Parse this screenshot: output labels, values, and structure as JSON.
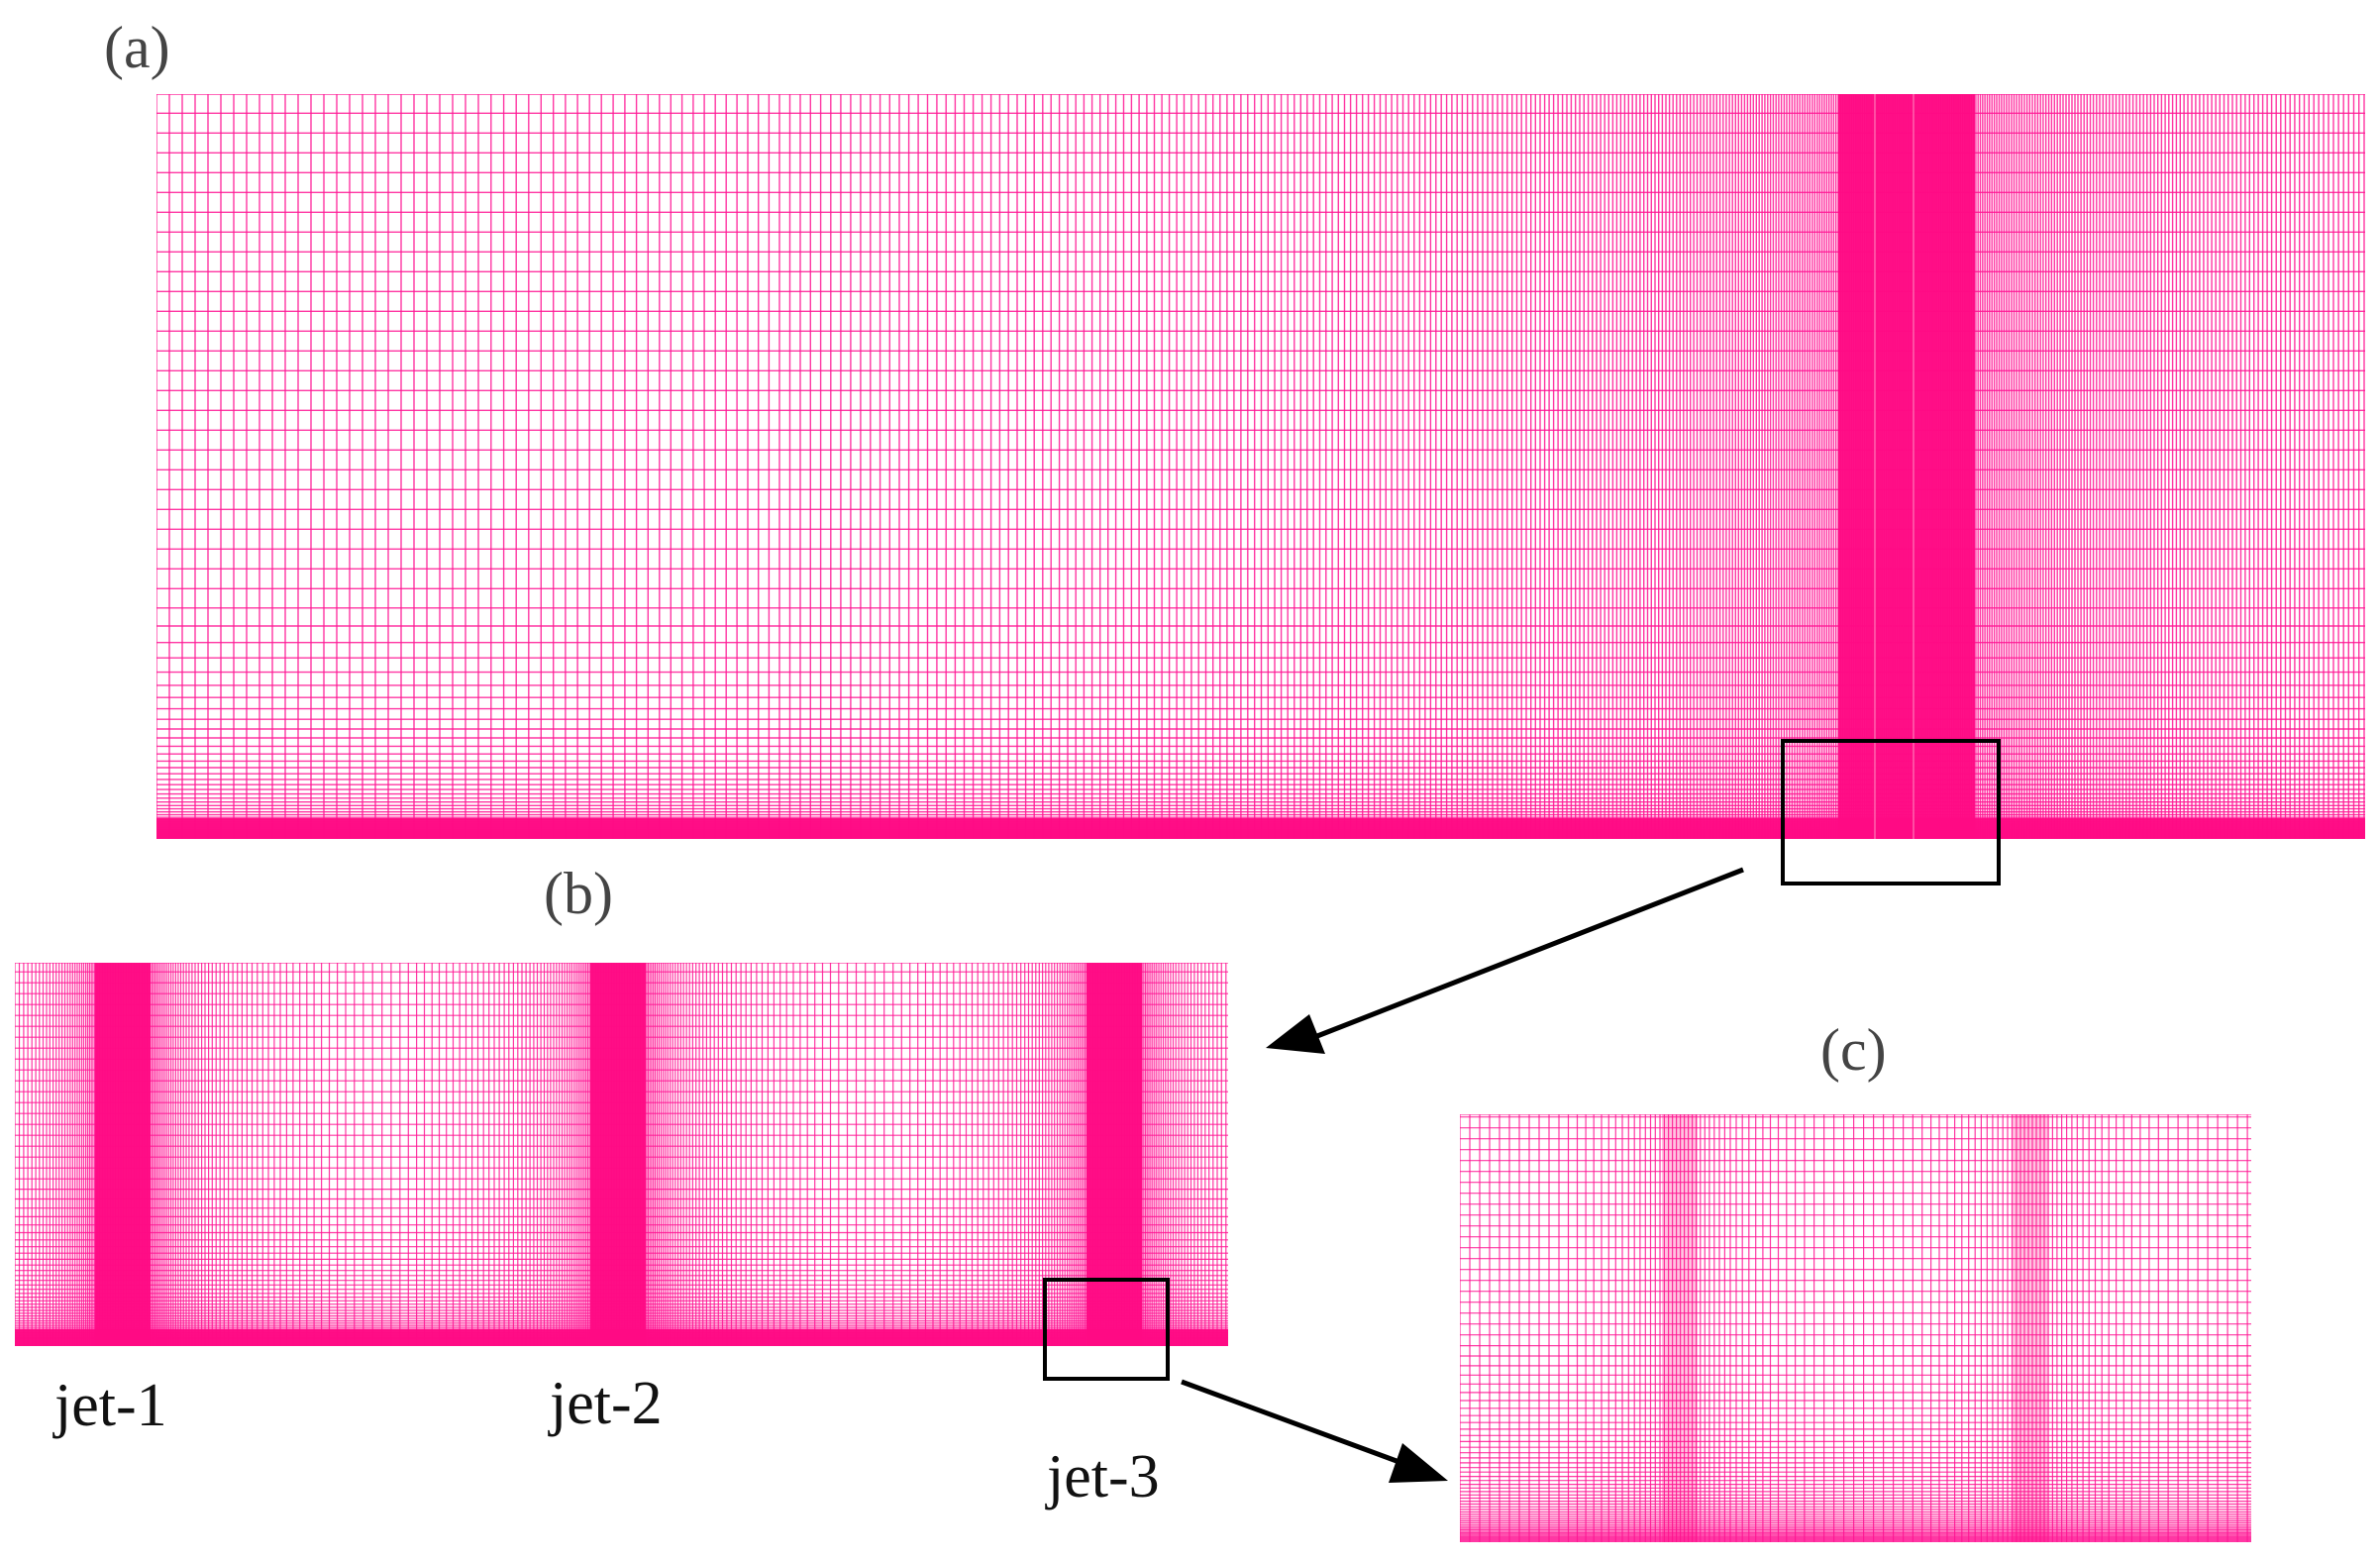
{
  "colors": {
    "mesh": "#ff1493",
    "mesh_dense": "#ff0a84",
    "frame": "#000000",
    "background": "#ffffff"
  },
  "panels": {
    "a": {
      "label": "(a)"
    },
    "b": {
      "label": "(b)"
    },
    "c": {
      "label": "(c)"
    }
  },
  "jets": {
    "jet1": "jet-1",
    "jet2": "jet-2",
    "jet3": "jet-3"
  }
}
